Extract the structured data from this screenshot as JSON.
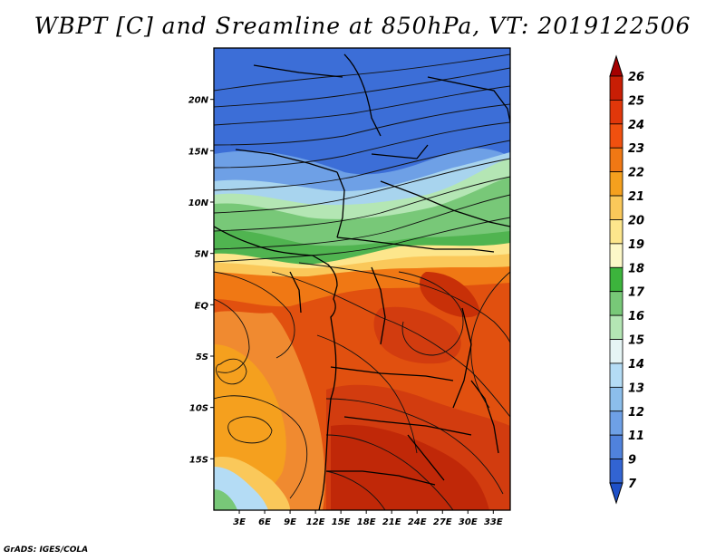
{
  "title": "WBPT [C] and Sreamline at 850hPa, VT: 2019122506",
  "footer": "GrADS: IGES/COLA",
  "map": {
    "lon_range": [
      0,
      35
    ],
    "lat_range": [
      -20,
      25
    ],
    "x_ticks": [
      "3E",
      "6E",
      "9E",
      "12E",
      "15E",
      "18E",
      "21E",
      "24E",
      "27E",
      "30E",
      "33E"
    ],
    "x_tick_values": [
      3,
      6,
      9,
      12,
      15,
      18,
      21,
      24,
      27,
      30,
      33
    ],
    "y_ticks": [
      "20N",
      "15N",
      "10N",
      "5N",
      "EQ",
      "5S",
      "10S",
      "15S"
    ],
    "y_tick_values": [
      20,
      15,
      10,
      5,
      0,
      -5,
      -10,
      -15
    ]
  },
  "colorbar": {
    "labels": [
      "26",
      "25",
      "24",
      "23",
      "22",
      "21",
      "20",
      "19",
      "18",
      "17",
      "16",
      "15",
      "14",
      "13",
      "12",
      "11",
      "9",
      "7"
    ],
    "colors": [
      "#a50000",
      "#c81e05",
      "#e1370a",
      "#f0500f",
      "#f07814",
      "#f5a01e",
      "#fac85a",
      "#fde68c",
      "#fdf8c8",
      "#3cb43c",
      "#78c878",
      "#b4e6b4",
      "#e6f5f5",
      "#b4dcf5",
      "#8cbeeb",
      "#6ea0e6",
      "#5082dc",
      "#3264d2",
      "#1e50c8"
    ]
  }
}
